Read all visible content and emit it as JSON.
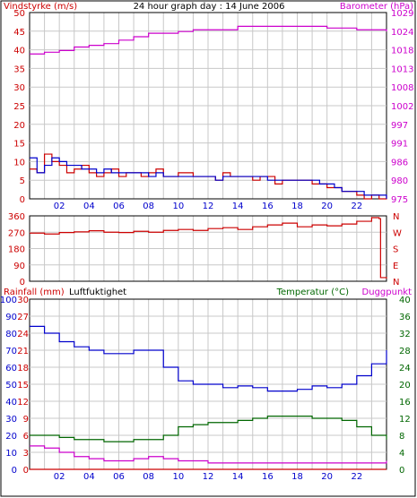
{
  "title": "24 hour graph day : 14 June 2006",
  "colors": {
    "wind": "#cc0000",
    "wind_avg": "#0000cc",
    "baro": "#cc00cc",
    "dir": "#cc0000",
    "rain": "#cc0000",
    "hum": "#0000cc",
    "temp": "#006600",
    "dew": "#cc00cc",
    "grid": "#c8c8c8",
    "frame": "#000000"
  },
  "chart_data": [
    {
      "type": "line",
      "left_label": "Vindstyrke (m/s)",
      "right_label": "Barometer (hPa)",
      "x_ticks": [
        "02",
        "04",
        "06",
        "08",
        "10",
        "12",
        "14",
        "16",
        "18",
        "20",
        "22"
      ],
      "x_range": [
        0,
        24
      ],
      "y_left": {
        "range": [
          0,
          50
        ],
        "ticks": [
          "0",
          "5",
          "10",
          "15",
          "20",
          "25",
          "30",
          "35",
          "40",
          "45",
          "50"
        ]
      },
      "y_right": {
        "range": [
          975,
          1029
        ],
        "ticks": [
          "975",
          "980",
          "986",
          "991",
          "997",
          "1002",
          "1008",
          "1013",
          "1018",
          "1024",
          "1029"
        ]
      },
      "series": [
        {
          "key": "wind",
          "axis": "left",
          "x": [
            0,
            0.5,
            1,
            1.5,
            2,
            2.5,
            3,
            3.5,
            4,
            4.5,
            5,
            5.5,
            6,
            6.5,
            7,
            7.5,
            8,
            8.5,
            9,
            9.5,
            10,
            10.5,
            11,
            11.5,
            12,
            12.5,
            13,
            13.5,
            14,
            14.5,
            15,
            15.5,
            16,
            16.5,
            17,
            17.5,
            18,
            18.5,
            19,
            19.5,
            20,
            20.5,
            21,
            21.5,
            22,
            22.5,
            23,
            23.5,
            24
          ],
          "values": [
            8,
            7,
            12,
            10,
            9,
            7,
            8,
            9,
            7,
            6,
            7,
            8,
            6,
            7,
            7,
            6,
            7,
            8,
            6,
            6,
            7,
            7,
            6,
            6,
            6,
            5,
            7,
            6,
            6,
            6,
            5,
            6,
            6,
            4,
            5,
            5,
            5,
            5,
            4,
            4,
            3,
            3,
            2,
            2,
            1,
            0,
            1,
            0,
            1
          ]
        },
        {
          "key": "wind_avg",
          "axis": "left",
          "x": [
            0,
            0.5,
            1,
            1.5,
            2,
            2.5,
            3,
            3.5,
            4,
            4.5,
            5,
            5.5,
            6,
            6.5,
            7,
            7.5,
            8,
            8.5,
            9,
            9.5,
            10,
            10.5,
            11,
            11.5,
            12,
            12.5,
            13,
            13.5,
            14,
            14.5,
            15,
            15.5,
            16,
            16.5,
            17,
            17.5,
            18,
            18.5,
            19,
            19.5,
            20,
            20.5,
            21,
            21.5,
            22,
            22.5,
            23,
            23.5,
            24
          ],
          "values": [
            11,
            7,
            9,
            11,
            10,
            9,
            9,
            8,
            8,
            7,
            8,
            7,
            7,
            7,
            7,
            7,
            6,
            7,
            6,
            6,
            6,
            6,
            6,
            6,
            6,
            5,
            6,
            6,
            6,
            6,
            6,
            6,
            5,
            5,
            5,
            5,
            5,
            5,
            5,
            4,
            4,
            3,
            2,
            2,
            2,
            1,
            1,
            1,
            0
          ]
        },
        {
          "key": "baro",
          "axis": "right",
          "x": [
            0,
            1,
            2,
            3,
            4,
            5,
            6,
            7,
            8,
            9,
            10,
            11,
            12,
            13,
            14,
            15,
            16,
            17,
            18,
            19,
            20,
            21,
            22,
            23,
            24
          ],
          "values": [
            1017,
            1017.5,
            1018,
            1019,
            1019.5,
            1020,
            1021,
            1022,
            1023,
            1023,
            1023.5,
            1024,
            1024,
            1024,
            1025,
            1025,
            1025,
            1025,
            1025,
            1025,
            1024.5,
            1024.5,
            1024,
            1024,
            1023.5
          ]
        }
      ]
    },
    {
      "type": "line",
      "left_label": "",
      "y_left": {
        "range": [
          0,
          360
        ],
        "ticks": [
          "0",
          "90",
          "180",
          "270",
          "360"
        ]
      },
      "y_right_labels": [
        "N",
        "E",
        "S",
        "W",
        "N"
      ],
      "series": [
        {
          "key": "dir",
          "axis": "left",
          "x": [
            0,
            1,
            2,
            3,
            4,
            5,
            6,
            7,
            8,
            9,
            10,
            11,
            12,
            13,
            14,
            15,
            16,
            17,
            18,
            19,
            20,
            21,
            22,
            23,
            23.5,
            23.6,
            24
          ],
          "values": [
            265,
            260,
            268,
            272,
            278,
            270,
            268,
            275,
            270,
            280,
            285,
            280,
            290,
            295,
            285,
            300,
            310,
            320,
            300,
            310,
            305,
            315,
            330,
            350,
            345,
            20,
            15
          ]
        }
      ]
    },
    {
      "type": "line",
      "left_label_1": "Rainfall (mm)",
      "left_label_2": "Luftfuktighet",
      "right_label_1": "Temperatur (°C)",
      "right_label_2": "Duggpunkt",
      "y_rain": {
        "range": [
          0,
          30
        ],
        "ticks": [
          "0",
          "3",
          "6",
          "9",
          "12",
          "15",
          "18",
          "21",
          "24",
          "27",
          "30"
        ]
      },
      "y_hum": {
        "range": [
          0,
          100
        ],
        "ticks": [
          "0",
          "10",
          "20",
          "30",
          "40",
          "50",
          "60",
          "70",
          "80",
          "90",
          "100"
        ]
      },
      "y_temp": {
        "range": [
          0,
          40
        ],
        "ticks": [
          "0",
          "4",
          "8",
          "12",
          "16",
          "20",
          "24",
          "28",
          "32",
          "36",
          "40"
        ]
      },
      "series": [
        {
          "key": "rain",
          "axis": "rain",
          "x": [
            0,
            1,
            2,
            3,
            4,
            5,
            6,
            7,
            8,
            9,
            10,
            11,
            12,
            13,
            14,
            15,
            16,
            17,
            18,
            19,
            20,
            21,
            22,
            23,
            24
          ],
          "values": [
            0,
            0,
            0,
            0,
            0,
            0,
            0,
            0,
            0,
            0,
            0,
            0,
            0,
            0,
            0,
            0,
            0,
            0,
            0,
            0,
            0,
            0,
            0,
            0,
            0
          ]
        },
        {
          "key": "hum",
          "axis": "hum",
          "x": [
            0,
            1,
            2,
            3,
            4,
            5,
            6,
            7,
            8,
            9,
            10,
            11,
            12,
            13,
            14,
            15,
            16,
            17,
            18,
            19,
            20,
            21,
            22,
            23,
            24
          ],
          "values": [
            84,
            80,
            75,
            72,
            70,
            68,
            68,
            70,
            70,
            60,
            52,
            50,
            50,
            48,
            49,
            48,
            46,
            46,
            47,
            49,
            48,
            50,
            55,
            62,
            70
          ]
        },
        {
          "key": "temp",
          "axis": "temp",
          "x": [
            0,
            1,
            2,
            3,
            4,
            5,
            6,
            7,
            8,
            9,
            10,
            11,
            12,
            13,
            14,
            15,
            16,
            17,
            18,
            19,
            20,
            21,
            22,
            23,
            24
          ],
          "values": [
            8,
            8,
            7.5,
            7,
            7,
            6.5,
            6.5,
            7,
            7,
            8,
            10,
            10.5,
            11,
            11,
            11.5,
            12,
            12.5,
            12.5,
            12.5,
            12,
            12,
            11.5,
            10,
            8,
            7
          ]
        },
        {
          "key": "dew",
          "axis": "temp",
          "x": [
            0,
            1,
            2,
            3,
            4,
            5,
            6,
            7,
            8,
            9,
            10,
            11,
            12,
            13,
            14,
            15,
            16,
            17,
            18,
            19,
            20,
            21,
            22,
            23,
            24
          ],
          "values": [
            5.5,
            5,
            4,
            3,
            2.5,
            2,
            2,
            2.5,
            3,
            2.5,
            2,
            2,
            1.5,
            1.5,
            1.5,
            1.5,
            1.5,
            1.5,
            1.5,
            1.5,
            1.5,
            1.5,
            1.5,
            1.5,
            2
          ]
        }
      ]
    }
  ]
}
